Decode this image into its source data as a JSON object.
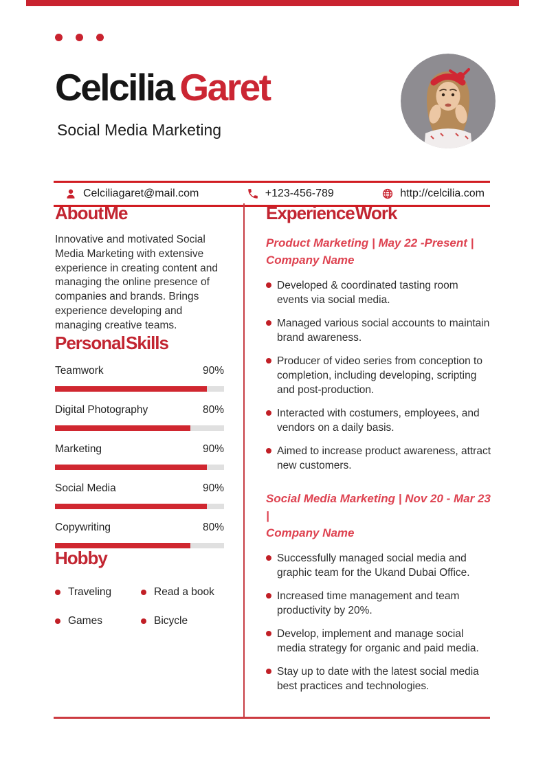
{
  "colors": {
    "accent": "#c9232f",
    "job_heading": "#de4351",
    "bar_fill": "#d02730",
    "bar_track": "#e0e0e0",
    "line": "#d11c22"
  },
  "header": {
    "first_name": "Celcilia ",
    "last_name": "Garet",
    "subtitle": "Social Media Marketing"
  },
  "contact": {
    "email": "Celciliagaret@mail.com",
    "phone": "+123-456-789",
    "website": "http://celcilia.com"
  },
  "about": {
    "title": "About Me",
    "text": "Innovative and motivated Social Media Marketing with extensive experience in creating content and managing the online presence of companies and brands. Brings experience developing and managing creative teams."
  },
  "skills": {
    "title": "Personal Skills",
    "items": [
      {
        "label": "Teamwork",
        "percent": "90%",
        "value": 90
      },
      {
        "label": "Digital Photography",
        "percent": "80%",
        "value": 80
      },
      {
        "label": "Marketing",
        "percent": "90%",
        "value": 90
      },
      {
        "label": "Social Media",
        "percent": "90%",
        "value": 90
      },
      {
        "label": "Copywriting",
        "percent": "80%",
        "value": 80
      }
    ]
  },
  "hobby": {
    "title": "Hobby",
    "items": [
      "Traveling",
      "Read a book",
      "Games",
      "Bicycle"
    ]
  },
  "experience": {
    "title": "Experience Work",
    "jobs": [
      {
        "heading_line1": "Product Marketing | May 22 -Present |",
        "heading_line2": "Company Name",
        "bullets": [
          "Developed & coordinated tasting room events via social media.",
          "Managed various social accounts to maintain brand awareness.",
          "Producer of video series from conception to completion, including developing, scripting and post-production.",
          "Interacted with costumers, employees, and vendors on a daily basis.",
          "Aimed to increase product awareness, attract new customers."
        ]
      },
      {
        "heading_line1": "Social Media Marketing | Nov 20 - Mar 23 |",
        "heading_line2": "Company Name",
        "bullets": [
          "Successfully managed social media and graphic team for the Ukand Dubai Office.",
          "Increased time management and team productivity by 20%.",
          "Develop, implement and manage social media strategy for organic and paid media.",
          "Stay up to date with the latest social media best practices and technologies."
        ]
      }
    ]
  }
}
